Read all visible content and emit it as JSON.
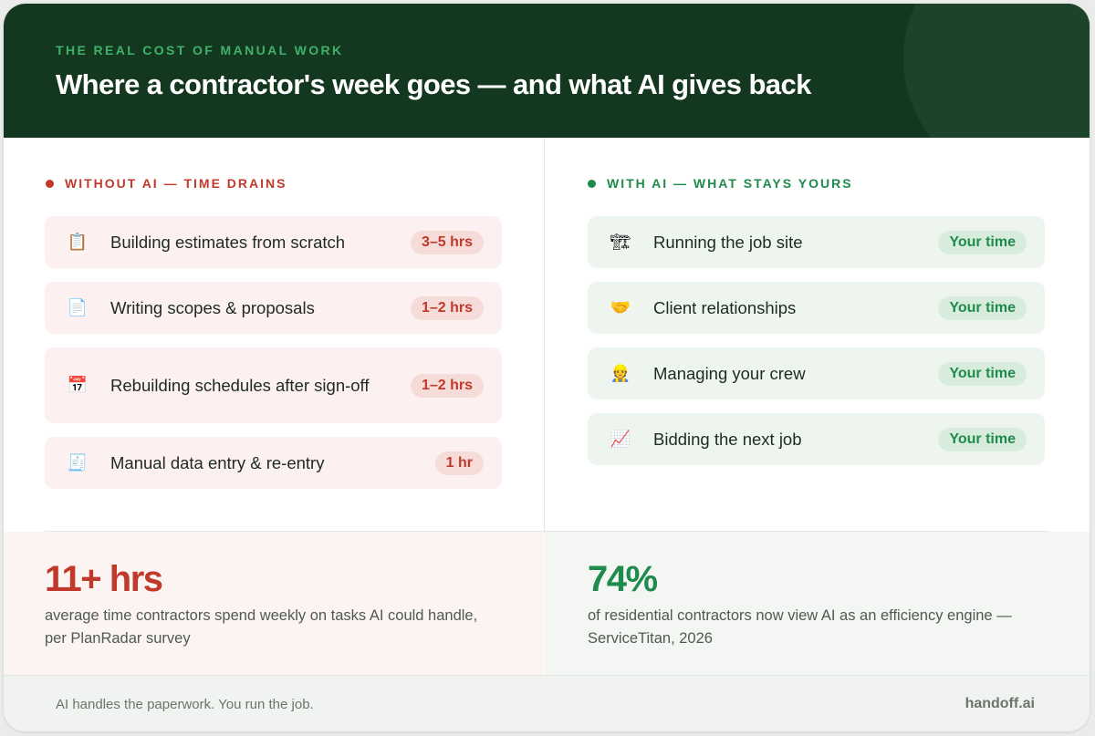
{
  "header": {
    "eyebrow": "THE REAL COST OF MANUAL WORK",
    "title": "Where a contractor's week goes — and what AI gives back",
    "background_color": "#14381f",
    "accent_color": "#3fb26a"
  },
  "without_ai": {
    "label": "WITHOUT AI — TIME DRAINS",
    "color": "#c0392b",
    "items": [
      {
        "icon": "clipboard-icon",
        "glyph": "📋",
        "label": "Building estimates from scratch",
        "time": "3–5 hrs"
      },
      {
        "icon": "document-icon",
        "glyph": "📄",
        "label": "Writing scopes & proposals",
        "time": "1–2 hrs"
      },
      {
        "icon": "calendar-icon",
        "glyph": "📅",
        "label": "Rebuilding schedules after sign-off",
        "time": "1–2 hrs"
      },
      {
        "icon": "receipt-icon",
        "glyph": "🧾",
        "label": "Manual data entry & re-entry",
        "time": "1 hr"
      }
    ]
  },
  "with_ai": {
    "label": "WITH AI — WHAT STAYS YOURS",
    "color": "#1e8a4c",
    "items": [
      {
        "icon": "crane-icon",
        "glyph": "🏗",
        "label": "Running the job site",
        "time": "Your time"
      },
      {
        "icon": "handshake-icon",
        "glyph": "🤝",
        "label": "Client relationships",
        "time": "Your time"
      },
      {
        "icon": "construction-worker-icon",
        "glyph": "👷",
        "label": "Managing your crew",
        "time": "Your time"
      },
      {
        "icon": "chart-increasing-icon",
        "glyph": "📈",
        "label": "Bidding the next job",
        "time": "Your time"
      }
    ]
  },
  "stats": {
    "left": {
      "value": "11+ hrs",
      "desc": "average time contractors spend weekly on tasks AI could handle, per PlanRadar survey"
    },
    "right": {
      "value": "74%",
      "desc": "of residential contractors now view AI as an efficiency engine — ServiceTitan, 2026"
    }
  },
  "footer": {
    "tagline": "AI handles the paperwork. You run the job.",
    "brand": "handoff.ai"
  }
}
